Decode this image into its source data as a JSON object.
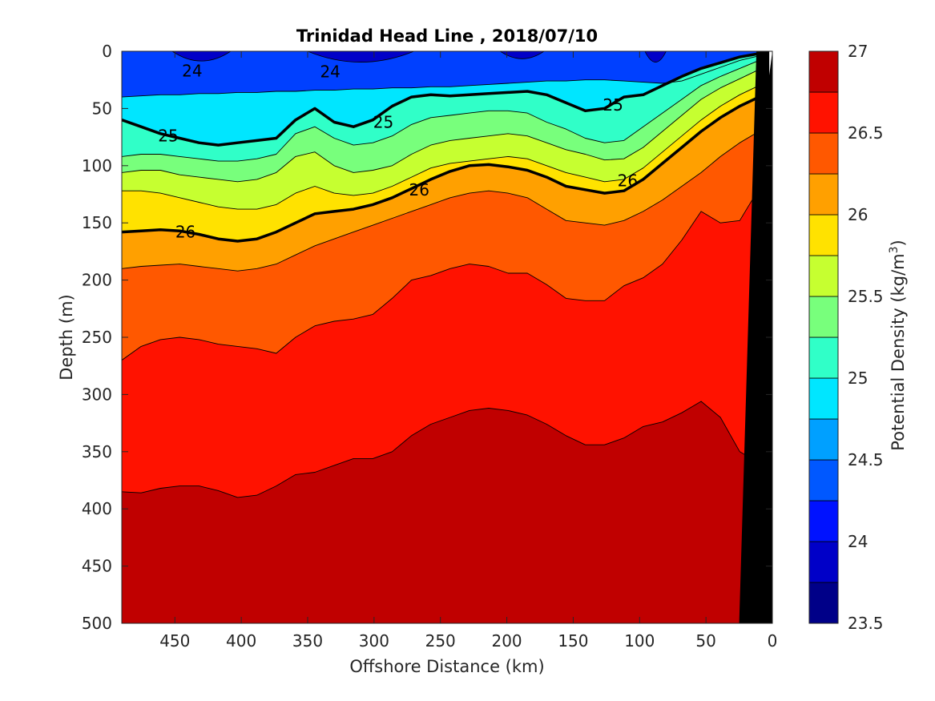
{
  "chart_data": {
    "type": "contour",
    "title": "Trinidad Head Line , 2018/07/10",
    "xlabel": "Offshore Distance (km)",
    "ylabel": "Depth (m)",
    "colorbar_label": "Potential Density (kg/m",
    "colorbar_label_sup": "3",
    "colorbar_label_end": ")",
    "xlim": [
      490,
      0
    ],
    "ylim": [
      0,
      500
    ],
    "x_ticks": [
      "450",
      "400",
      "350",
      "300",
      "250",
      "200",
      "150",
      "100",
      "50",
      "0"
    ],
    "y_ticks": [
      "0",
      "50",
      "100",
      "150",
      "200",
      "250",
      "300",
      "350",
      "400",
      "450",
      "500"
    ],
    "colorbar_range": [
      23.5,
      27
    ],
    "colorbar_ticks": [
      "23.5",
      "24",
      "24.5",
      "25",
      "25.5",
      "26",
      "26.5",
      "27"
    ],
    "contour_interval": 0.25,
    "levels": [
      {
        "value": 23.5,
        "color": "#000088"
      },
      {
        "value": 23.75,
        "color": "#0000c8"
      },
      {
        "value": 24.0,
        "color": "#0012ff"
      },
      {
        "value": 24.25,
        "color": "#0058ff"
      },
      {
        "value": 24.5,
        "color": "#00a0ff"
      },
      {
        "value": 24.75,
        "color": "#00e6ff"
      },
      {
        "value": 25.0,
        "color": "#30ffc8"
      },
      {
        "value": 25.25,
        "color": "#78ff7c"
      },
      {
        "value": 25.5,
        "color": "#c6ff30"
      },
      {
        "value": 25.75,
        "color": "#ffe200"
      },
      {
        "value": 26.0,
        "color": "#ffa000"
      },
      {
        "value": 26.25,
        "color": "#ff5800"
      },
      {
        "value": 26.5,
        "color": "#ff1200"
      },
      {
        "value": 26.75,
        "color": "#c00000"
      }
    ],
    "isopycnals": [
      {
        "value": 24.75,
        "depth": [
          40,
          39,
          38,
          38,
          37,
          37,
          36,
          36,
          35,
          35,
          34,
          34,
          33,
          33,
          32,
          32,
          31,
          31,
          30,
          29,
          28,
          27,
          26,
          26,
          25,
          25,
          26,
          27,
          28,
          26,
          20,
          14,
          8,
          4
        ]
      },
      {
        "value": 25.0,
        "depth": [
          60,
          66,
          72,
          76,
          80,
          82,
          80,
          78,
          76,
          60,
          50,
          62,
          66,
          60,
          48,
          40,
          38,
          39,
          38,
          37,
          36,
          35,
          38,
          45,
          52,
          50,
          40,
          38,
          30,
          22,
          15,
          10,
          5,
          2
        ]
      },
      {
        "value": 25.25,
        "depth": [
          92,
          90,
          90,
          92,
          94,
          96,
          96,
          94,
          90,
          72,
          66,
          76,
          82,
          80,
          74,
          64,
          58,
          56,
          54,
          52,
          52,
          54,
          62,
          68,
          76,
          80,
          78,
          66,
          54,
          42,
          30,
          22,
          15,
          8
        ]
      },
      {
        "value": 25.5,
        "depth": [
          106,
          104,
          104,
          108,
          110,
          112,
          114,
          112,
          106,
          92,
          88,
          100,
          106,
          104,
          100,
          90,
          82,
          78,
          76,
          74,
          72,
          74,
          80,
          86,
          90,
          95,
          94,
          84,
          70,
          56,
          42,
          32,
          24,
          16
        ]
      },
      {
        "value": 25.75,
        "depth": [
          122,
          122,
          124,
          128,
          132,
          136,
          138,
          138,
          134,
          124,
          118,
          124,
          126,
          124,
          118,
          110,
          102,
          98,
          96,
          94,
          92,
          94,
          100,
          106,
          110,
          114,
          112,
          102,
          88,
          74,
          60,
          48,
          38,
          30
        ]
      },
      {
        "value": 26.0,
        "depth": [
          158,
          157,
          156,
          157,
          160,
          164,
          166,
          164,
          158,
          150,
          142,
          140,
          138,
          134,
          128,
          120,
          112,
          105,
          100,
          99,
          101,
          104,
          110,
          118,
          121,
          124,
          122,
          112,
          98,
          84,
          70,
          58,
          48,
          40
        ]
      },
      {
        "value": 26.25,
        "depth": [
          190,
          188,
          187,
          186,
          188,
          190,
          192,
          190,
          186,
          178,
          170,
          164,
          158,
          152,
          146,
          140,
          134,
          128,
          124,
          122,
          124,
          128,
          138,
          148,
          150,
          152,
          148,
          140,
          130,
          118,
          106,
          92,
          80,
          70
        ]
      },
      {
        "value": 26.5,
        "depth": [
          270,
          258,
          252,
          250,
          252,
          256,
          258,
          260,
          264,
          250,
          240,
          236,
          234,
          230,
          216,
          200,
          196,
          190,
          186,
          188,
          194,
          194,
          204,
          216,
          218,
          218,
          205,
          198,
          186,
          165,
          140,
          150,
          148,
          120
        ]
      },
      {
        "value": 26.75,
        "depth": [
          385,
          386,
          382,
          380,
          380,
          384,
          390,
          388,
          380,
          370,
          368,
          362,
          356,
          356,
          350,
          336,
          326,
          320,
          314,
          312,
          314,
          318,
          326,
          336,
          344,
          344,
          338,
          328,
          324,
          316,
          306,
          320,
          350,
          360
        ]
      }
    ],
    "contour_labels": [
      {
        "text": "24",
        "x": 437,
        "y": 17
      },
      {
        "text": "24",
        "x": 333,
        "y": 18
      },
      {
        "text": "25",
        "x": 455,
        "y": 74
      },
      {
        "text": "25",
        "x": 293,
        "y": 62
      },
      {
        "text": "25",
        "x": 120,
        "y": 47
      },
      {
        "text": "26",
        "x": 266,
        "y": 121
      },
      {
        "text": "26",
        "x": 109,
        "y": 113
      },
      {
        "text": "26",
        "x": 442,
        "y": 158
      }
    ],
    "bathymetry": {
      "surface_km": 12,
      "bottom_km": 25
    }
  }
}
